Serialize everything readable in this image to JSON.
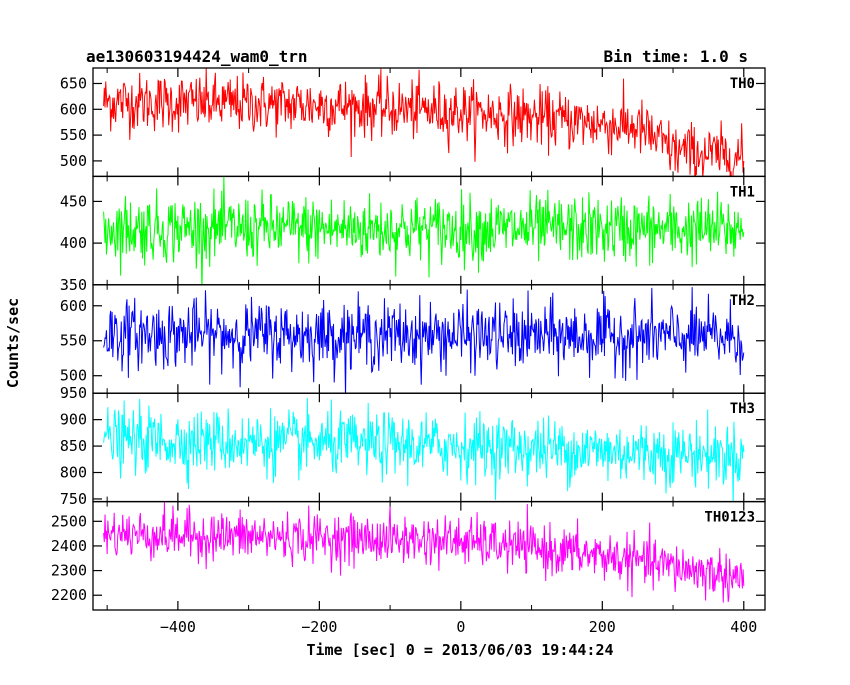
{
  "chart_data": {
    "type": "line",
    "title_left": "ae130603194424_wam0_trn",
    "title_right": "Bin time: 1.0 s",
    "xlabel": "Time [sec] 0 = 2013/06/03 19:44:24",
    "ylabel": "Counts/sec",
    "xlim": [
      -520,
      430
    ],
    "x_ticks": [
      -400,
      -200,
      0,
      200,
      400
    ],
    "x_tick_labels": [
      "−400",
      "−200",
      "0",
      "200",
      "400"
    ],
    "x_start": -505,
    "x_end": 400,
    "bin_time": 1.0,
    "panels": [
      {
        "name": "TH0",
        "color": "#ff0000",
        "ylim": [
          470,
          680
        ],
        "y_ticks": [
          500,
          550,
          600,
          650
        ],
        "trend": [
          {
            "x": -505,
            "y": 615
          },
          {
            "x": -200,
            "y": 608
          },
          {
            "x": 0,
            "y": 595
          },
          {
            "x": 100,
            "y": 585
          },
          {
            "x": 250,
            "y": 565
          },
          {
            "x": 300,
            "y": 520
          },
          {
            "x": 400,
            "y": 505
          }
        ],
        "noise_sd": 28
      },
      {
        "name": "TH1",
        "color": "#00ff00",
        "ylim": [
          350,
          480
        ],
        "y_ticks": [
          350,
          400,
          450
        ],
        "trend": [
          {
            "x": -505,
            "y": 418
          },
          {
            "x": 400,
            "y": 416
          }
        ],
        "noise_sd": 20
      },
      {
        "name": "TH2",
        "color": "#0000ff",
        "ylim": [
          475,
          630
        ],
        "y_ticks": [
          500,
          550,
          600
        ],
        "trend": [
          {
            "x": -505,
            "y": 560
          },
          {
            "x": 400,
            "y": 555
          }
        ],
        "noise_sd": 24
      },
      {
        "name": "TH3",
        "color": "#00ffff",
        "ylim": [
          745,
          950
        ],
        "y_ticks": [
          750,
          800,
          850,
          900,
          950
        ],
        "trend": [
          {
            "x": -505,
            "y": 862
          },
          {
            "x": 0,
            "y": 850
          },
          {
            "x": 400,
            "y": 832
          }
        ],
        "noise_sd": 30
      },
      {
        "name": "TH0123",
        "color": "#ff00ff",
        "ylim": [
          2140,
          2580
        ],
        "y_ticks": [
          2200,
          2300,
          2400,
          2500
        ],
        "trend": [
          {
            "x": -505,
            "y": 2450
          },
          {
            "x": 0,
            "y": 2420
          },
          {
            "x": 200,
            "y": 2360
          },
          {
            "x": 400,
            "y": 2270
          }
        ],
        "noise_sd": 50
      }
    ],
    "grid": false,
    "legend": "none"
  }
}
